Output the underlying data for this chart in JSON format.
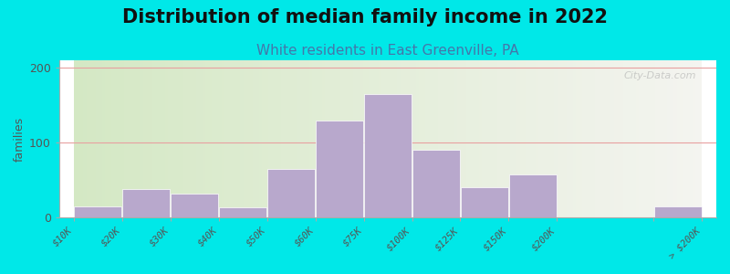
{
  "title": "Distribution of median family income in 2022",
  "subtitle": "White residents in East Greenville, PA",
  "ylabel": "families",
  "tick_labels": [
    "$10K",
    "$20K",
    "$30K",
    "$40K",
    "$50K",
    "$60K",
    "$75K",
    "$100K",
    "$125K",
    "$150K",
    "$200K",
    "",
    "> $200K"
  ],
  "bin_edges": [
    0,
    1,
    2,
    3,
    4,
    5,
    6,
    7,
    8,
    9,
    10,
    12,
    13
  ],
  "values": [
    15,
    38,
    32,
    14,
    65,
    130,
    165,
    90,
    40,
    57,
    0,
    15
  ],
  "bar_color": "#b8a8cc",
  "bg_outer": "#00e8e8",
  "bg_chart_left": "#d4e8c4",
  "bg_chart_right": "#f4f4f0",
  "ylim": [
    0,
    210
  ],
  "yticks": [
    0,
    100,
    200
  ],
  "grid_color": "#e8a0a0",
  "title_fontsize": 15,
  "subtitle_fontsize": 11,
  "subtitle_color": "#4477aa",
  "watermark": "City-Data.com",
  "tick_positions": [
    0,
    1,
    2,
    3,
    4,
    5,
    6,
    7,
    8,
    9,
    10,
    12,
    13
  ]
}
